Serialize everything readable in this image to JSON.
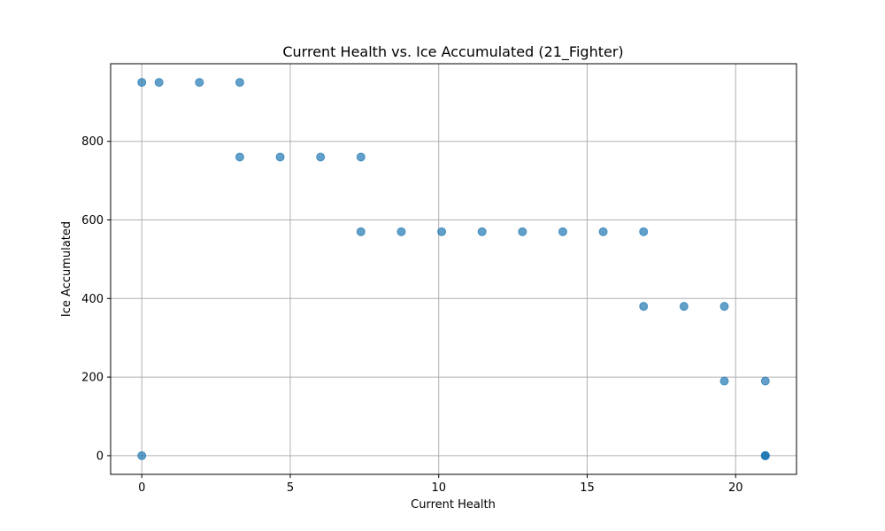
{
  "chart_data": {
    "type": "scatter",
    "title": "Current Health vs. Ice Accumulated (21_Fighter)",
    "xlabel": "Current Health",
    "ylabel": "Ice Accumulated",
    "xlim": [
      -1.05,
      22.05
    ],
    "ylim": [
      -47.5,
      997.5
    ],
    "xticks": [
      0,
      5,
      10,
      15,
      20
    ],
    "yticks": [
      0,
      200,
      400,
      600,
      800
    ],
    "grid": true,
    "marker_color": "#1f77b4",
    "marker_alpha": 0.7,
    "points": [
      {
        "x": 0,
        "y": 950
      },
      {
        "x": 0.58,
        "y": 950
      },
      {
        "x": 1.94,
        "y": 950
      },
      {
        "x": 3.3,
        "y": 950
      },
      {
        "x": 3.3,
        "y": 760
      },
      {
        "x": 4.66,
        "y": 760
      },
      {
        "x": 6.02,
        "y": 760
      },
      {
        "x": 7.38,
        "y": 760
      },
      {
        "x": 7.38,
        "y": 570
      },
      {
        "x": 8.74,
        "y": 570
      },
      {
        "x": 10.1,
        "y": 570
      },
      {
        "x": 11.46,
        "y": 570
      },
      {
        "x": 12.82,
        "y": 570
      },
      {
        "x": 14.18,
        "y": 570
      },
      {
        "x": 15.54,
        "y": 570
      },
      {
        "x": 16.9,
        "y": 570
      },
      {
        "x": 16.9,
        "y": 380
      },
      {
        "x": 18.26,
        "y": 380
      },
      {
        "x": 19.62,
        "y": 380
      },
      {
        "x": 19.62,
        "y": 190
      },
      {
        "x": 21,
        "y": 190
      },
      {
        "x": 0,
        "y": 0
      },
      {
        "x": 21,
        "y": 0
      },
      {
        "x": 21,
        "y": 0
      },
      {
        "x": 21,
        "y": 0
      }
    ]
  }
}
